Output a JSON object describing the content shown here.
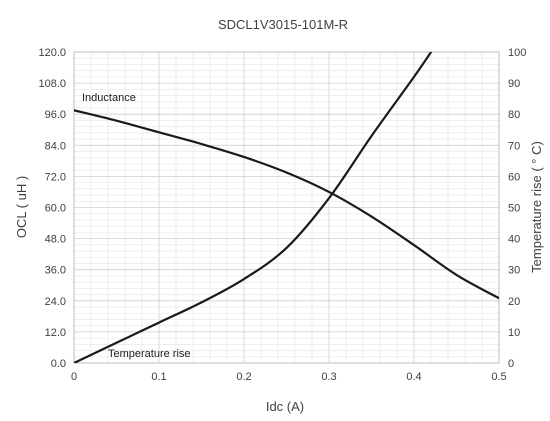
{
  "chart_data": {
    "type": "line",
    "title": "SDCL1V3015-101M-R",
    "xlabel": "Idc (A)",
    "ylabel_left": "OCL ( uH )",
    "ylabel_right": "Temperature rise ( ° C)",
    "xlim": [
      0,
      0.5
    ],
    "ylim_left": [
      0,
      120
    ],
    "ylim_right": [
      0,
      100
    ],
    "x_ticks": [
      "0",
      "0.1",
      "0.2",
      "0.3",
      "0.4",
      "0.5"
    ],
    "y_left_ticks": [
      "0.0",
      "12.0",
      "24.0",
      "36.0",
      "48.0",
      "60.0",
      "72.0",
      "84.0",
      "96.0",
      "108.0",
      "120.0"
    ],
    "y_right_ticks": [
      "0",
      "10",
      "20",
      "30",
      "40",
      "50",
      "60",
      "70",
      "80",
      "90",
      "100"
    ],
    "grid": true,
    "series": [
      {
        "name": "Inductance",
        "axis": "left",
        "x": [
          0,
          0.05,
          0.1,
          0.15,
          0.2,
          0.25,
          0.3,
          0.35,
          0.4,
          0.45,
          0.5
        ],
        "y": [
          97.5,
          93.5,
          89.0,
          84.5,
          79.5,
          73.5,
          66.0,
          56.5,
          45.5,
          34.0,
          25.0
        ]
      },
      {
        "name": "Temperature rise",
        "axis": "right",
        "x": [
          0,
          0.05,
          0.1,
          0.15,
          0.2,
          0.25,
          0.3,
          0.35,
          0.4,
          0.425
        ],
        "y": [
          0,
          6.5,
          13.0,
          19.5,
          27.0,
          37.0,
          53.0,
          73.0,
          92.0,
          102.0
        ]
      }
    ]
  }
}
